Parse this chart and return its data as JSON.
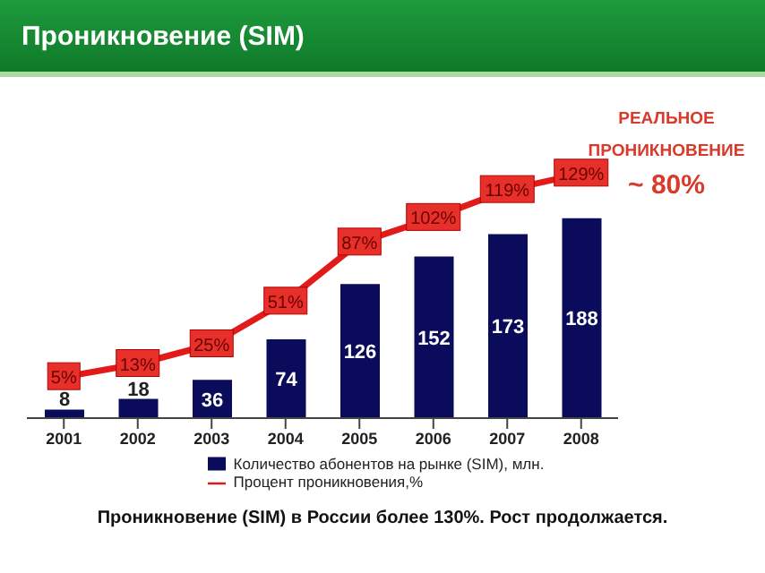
{
  "chart_data": {
    "type": "bar",
    "title": "Проникновение (SIM)",
    "categories": [
      "2001",
      "2002",
      "2003",
      "2004",
      "2005",
      "2006",
      "2007",
      "2008"
    ],
    "series": [
      {
        "name": "Количество абонентов на рынке (SIM), млн.",
        "color": "#0b0b5c",
        "values": [
          8,
          18,
          36,
          74,
          126,
          152,
          173,
          188
        ]
      },
      {
        "name": "Процент проникновения,%",
        "type": "line",
        "axis": "y2",
        "color": "#e21a1a",
        "values": [
          5,
          13,
          25,
          51,
          87,
          102,
          119,
          129
        ],
        "value_labels": [
          "5%",
          "13%",
          "25%",
          "51%",
          "87%",
          "102%",
          "119%",
          "129%"
        ]
      }
    ],
    "tick_labels": "x",
    "data_labels": true,
    "legend": "bottom",
    "grid": false,
    "line_style": "solid",
    "annotations": [
      "РЕАЛЬНОЕ ПРОНИКНОВЕНИЕ",
      "~ 80%",
      "Проникновение (SIM) в России более 130%. Рост продолжается."
    ]
  }
}
